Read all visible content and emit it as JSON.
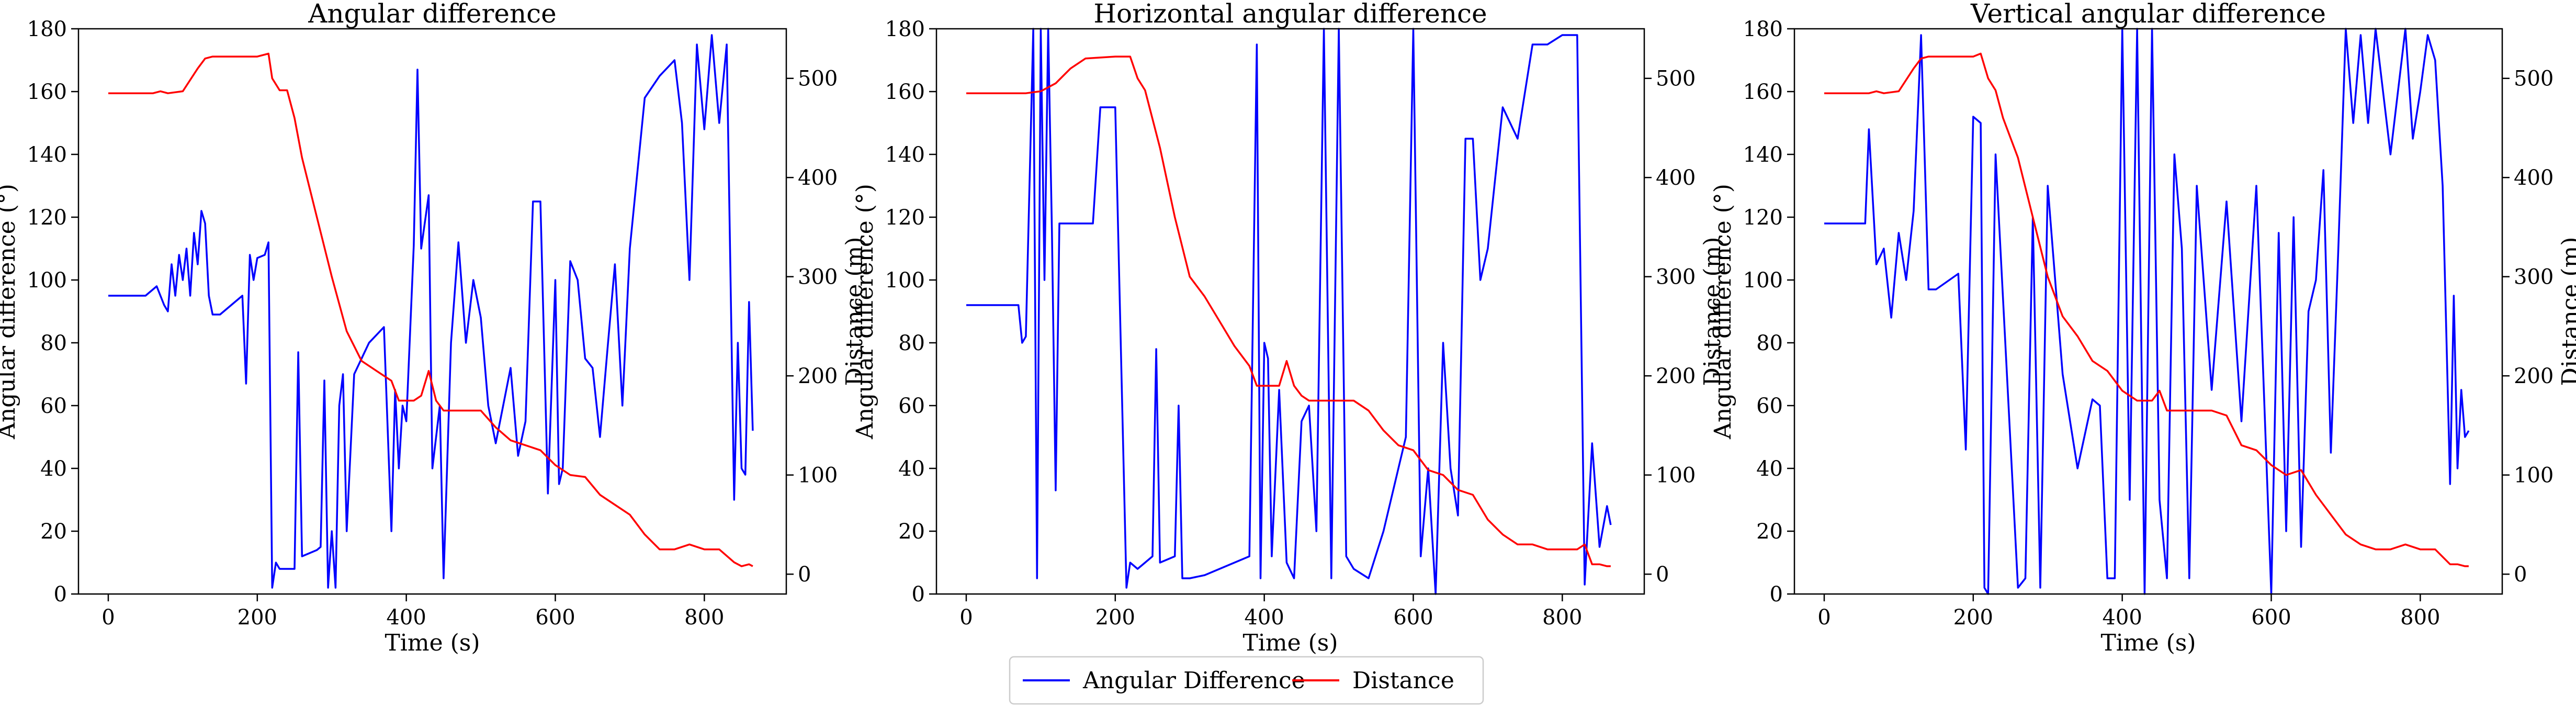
{
  "legend": {
    "entries": [
      {
        "label": "Angular Difference",
        "color": "#0000ff"
      },
      {
        "label": "Distance",
        "color": "#ff0000"
      }
    ],
    "placement": "bottom-center"
  },
  "chart_data": [
    {
      "type": "line",
      "title": "Angular difference",
      "xlabel": "Time (s)",
      "ylabel": "Angular difference (°)",
      "y2label": "Distance (m)",
      "xlim": [
        -40,
        910
      ],
      "ylim": [
        0,
        180
      ],
      "y2lim": [
        -20,
        550
      ],
      "xticks": [
        0,
        200,
        400,
        600,
        800
      ],
      "yticks": [
        0,
        20,
        40,
        60,
        80,
        100,
        120,
        140,
        160,
        180
      ],
      "y2ticks": [
        0,
        100,
        200,
        300,
        400,
        500
      ],
      "grid": false,
      "series": [
        {
          "name": "Angular Difference",
          "color": "#0000ff",
          "axis": "left",
          "x": [
            0,
            50,
            65,
            75,
            80,
            85,
            90,
            95,
            100,
            105,
            110,
            115,
            120,
            125,
            130,
            135,
            140,
            150,
            180,
            185,
            190,
            195,
            200,
            210,
            215,
            220,
            225,
            230,
            250,
            255,
            260,
            280,
            285,
            290,
            295,
            300,
            305,
            310,
            315,
            320,
            330,
            350,
            370,
            380,
            385,
            390,
            395,
            400,
            410,
            415,
            420,
            430,
            435,
            440,
            445,
            450,
            460,
            470,
            480,
            490,
            500,
            510,
            520,
            530,
            540,
            550,
            560,
            570,
            580,
            590,
            600,
            605,
            610,
            620,
            630,
            640,
            650,
            660,
            670,
            680,
            690,
            700,
            720,
            740,
            760,
            770,
            780,
            790,
            800,
            810,
            820,
            830,
            840,
            845,
            850,
            855,
            860,
            865
          ],
          "y": [
            95,
            95,
            98,
            92,
            90,
            105,
            95,
            108,
            100,
            110,
            95,
            115,
            105,
            122,
            118,
            95,
            89,
            89,
            95,
            67,
            108,
            100,
            107,
            108,
            112,
            2,
            10,
            8,
            8,
            77,
            12,
            14,
            15,
            68,
            2,
            20,
            2,
            60,
            70,
            20,
            70,
            80,
            85,
            20,
            65,
            40,
            60,
            55,
            111,
            167,
            110,
            127,
            40,
            50,
            60,
            5,
            80,
            112,
            80,
            100,
            88,
            60,
            48,
            60,
            72,
            44,
            55,
            125,
            125,
            32,
            100,
            35,
            40,
            106,
            100,
            75,
            72,
            50,
            78,
            105,
            60,
            110,
            158,
            165,
            170,
            150,
            100,
            175,
            148,
            178,
            150,
            175,
            30,
            80,
            40,
            38,
            93,
            52
          ]
        },
        {
          "name": "Distance",
          "color": "#ff0000",
          "axis": "right",
          "x": [
            0,
            60,
            70,
            80,
            100,
            120,
            130,
            140,
            150,
            200,
            215,
            220,
            230,
            240,
            250,
            260,
            280,
            300,
            320,
            340,
            360,
            380,
            390,
            400,
            410,
            420,
            430,
            440,
            450,
            470,
            480,
            500,
            520,
            540,
            560,
            580,
            600,
            620,
            640,
            660,
            680,
            700,
            720,
            740,
            760,
            780,
            800,
            820,
            840,
            850,
            860,
            865
          ],
          "y": [
            485,
            485,
            487,
            485,
            487,
            510,
            520,
            522,
            522,
            522,
            525,
            500,
            488,
            488,
            460,
            420,
            360,
            300,
            245,
            215,
            205,
            195,
            175,
            175,
            175,
            180,
            205,
            175,
            165,
            165,
            165,
            165,
            148,
            135,
            130,
            125,
            110,
            100,
            98,
            80,
            70,
            60,
            40,
            25,
            25,
            30,
            25,
            25,
            12,
            8,
            10,
            8
          ]
        }
      ]
    },
    {
      "type": "line",
      "title": "Horizontal angular difference",
      "xlabel": "Time (s)",
      "ylabel": "Angular difference (°)",
      "y2label": "Distance (m)",
      "xlim": [
        -40,
        910
      ],
      "ylim": [
        0,
        180
      ],
      "y2lim": [
        -20,
        550
      ],
      "xticks": [
        0,
        200,
        400,
        600,
        800
      ],
      "yticks": [
        0,
        20,
        40,
        60,
        80,
        100,
        120,
        140,
        160,
        180
      ],
      "y2ticks": [
        0,
        100,
        200,
        300,
        400,
        500
      ],
      "grid": false,
      "series": [
        {
          "name": "Angular Difference",
          "color": "#0000ff",
          "axis": "left",
          "x": [
            0,
            60,
            70,
            75,
            80,
            90,
            95,
            100,
            105,
            110,
            115,
            120,
            125,
            140,
            170,
            180,
            185,
            200,
            215,
            220,
            230,
            240,
            250,
            255,
            260,
            280,
            285,
            290,
            300,
            320,
            340,
            360,
            380,
            390,
            395,
            400,
            405,
            410,
            420,
            430,
            440,
            450,
            460,
            470,
            480,
            490,
            500,
            510,
            520,
            540,
            560,
            580,
            590,
            600,
            610,
            620,
            630,
            640,
            650,
            660,
            670,
            680,
            690,
            700,
            720,
            740,
            760,
            780,
            800,
            820,
            830,
            840,
            850,
            860,
            865
          ],
          "y": [
            92,
            92,
            92,
            80,
            82,
            180,
            5,
            180,
            100,
            180,
            115,
            33,
            118,
            118,
            118,
            155,
            155,
            155,
            2,
            10,
            8,
            10,
            12,
            78,
            10,
            12,
            60,
            5,
            5,
            6,
            8,
            10,
            12,
            175,
            5,
            80,
            75,
            12,
            65,
            10,
            5,
            55,
            60,
            20,
            180,
            5,
            180,
            12,
            8,
            5,
            20,
            40,
            50,
            180,
            12,
            40,
            0,
            80,
            40,
            25,
            145,
            145,
            100,
            110,
            155,
            145,
            175,
            175,
            178,
            178,
            3,
            48,
            15,
            28,
            22
          ]
        },
        {
          "name": "Distance",
          "color": "#ff0000",
          "axis": "right",
          "x": [
            0,
            80,
            100,
            120,
            140,
            160,
            200,
            220,
            230,
            240,
            260,
            280,
            300,
            320,
            340,
            360,
            380,
            390,
            400,
            420,
            430,
            440,
            450,
            460,
            480,
            500,
            520,
            540,
            560,
            580,
            600,
            620,
            640,
            660,
            680,
            700,
            720,
            740,
            760,
            780,
            800,
            820,
            830,
            840,
            850,
            860,
            865
          ],
          "y": [
            485,
            485,
            487,
            495,
            510,
            520,
            522,
            522,
            500,
            488,
            430,
            360,
            300,
            280,
            255,
            230,
            210,
            190,
            190,
            190,
            215,
            190,
            180,
            175,
            175,
            175,
            175,
            165,
            145,
            130,
            125,
            105,
            100,
            85,
            80,
            55,
            40,
            30,
            30,
            25,
            25,
            25,
            30,
            10,
            10,
            8,
            8
          ]
        }
      ]
    },
    {
      "type": "line",
      "title": "Vertical angular difference",
      "xlabel": "Time (s)",
      "ylabel": "Angular difference (°)",
      "y2label": "Distance (m)",
      "xlim": [
        -40,
        910
      ],
      "ylim": [
        0,
        180
      ],
      "y2lim": [
        -20,
        550
      ],
      "xticks": [
        0,
        200,
        400,
        600,
        800
      ],
      "yticks": [
        0,
        20,
        40,
        60,
        80,
        100,
        120,
        140,
        160,
        180
      ],
      "y2ticks": [
        0,
        100,
        200,
        300,
        400,
        500
      ],
      "grid": false,
      "series": [
        {
          "name": "Angular Difference",
          "color": "#0000ff",
          "axis": "left",
          "x": [
            0,
            50,
            55,
            60,
            70,
            80,
            90,
            100,
            110,
            120,
            130,
            140,
            150,
            180,
            190,
            200,
            210,
            215,
            220,
            230,
            260,
            270,
            280,
            290,
            300,
            320,
            340,
            360,
            370,
            380,
            390,
            400,
            410,
            420,
            430,
            440,
            450,
            460,
            470,
            480,
            490,
            500,
            520,
            540,
            560,
            580,
            590,
            600,
            610,
            620,
            630,
            640,
            650,
            660,
            670,
            680,
            690,
            700,
            710,
            720,
            730,
            740,
            760,
            780,
            790,
            800,
            810,
            820,
            830,
            840,
            845,
            850,
            855,
            860,
            865
          ],
          "y": [
            118,
            118,
            118,
            148,
            105,
            110,
            88,
            115,
            100,
            122,
            178,
            97,
            97,
            102,
            46,
            152,
            150,
            2,
            0,
            140,
            2,
            5,
            120,
            2,
            130,
            70,
            40,
            62,
            60,
            5,
            5,
            180,
            30,
            180,
            0,
            180,
            30,
            5,
            140,
            110,
            5,
            130,
            65,
            125,
            55,
            130,
            65,
            0,
            115,
            20,
            120,
            15,
            90,
            100,
            135,
            45,
            110,
            180,
            150,
            178,
            150,
            180,
            140,
            180,
            145,
            160,
            178,
            170,
            130,
            35,
            95,
            40,
            65,
            50,
            52
          ]
        },
        {
          "name": "Distance",
          "color": "#ff0000",
          "axis": "right",
          "x": [
            0,
            60,
            70,
            80,
            100,
            120,
            130,
            140,
            150,
            200,
            210,
            220,
            230,
            240,
            260,
            280,
            300,
            320,
            340,
            360,
            380,
            400,
            420,
            440,
            450,
            460,
            500,
            520,
            540,
            560,
            580,
            600,
            620,
            640,
            660,
            680,
            700,
            720,
            740,
            760,
            780,
            800,
            820,
            840,
            850,
            860,
            865
          ],
          "y": [
            485,
            485,
            487,
            485,
            487,
            510,
            520,
            522,
            522,
            522,
            525,
            500,
            488,
            460,
            420,
            360,
            300,
            260,
            240,
            215,
            205,
            185,
            175,
            175,
            185,
            165,
            165,
            165,
            160,
            130,
            125,
            110,
            100,
            105,
            80,
            60,
            40,
            30,
            25,
            25,
            30,
            25,
            25,
            10,
            10,
            8,
            8
          ]
        }
      ]
    }
  ]
}
